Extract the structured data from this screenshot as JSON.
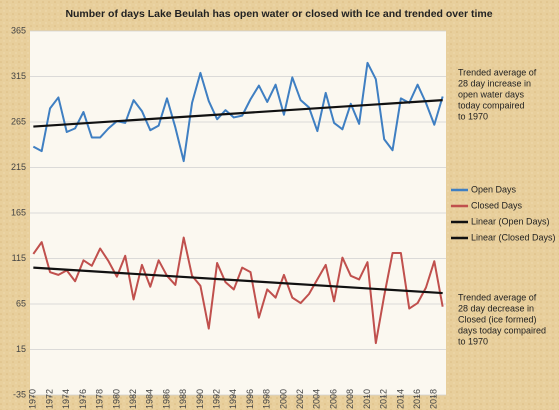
{
  "chart_data": {
    "type": "line",
    "title": "Number of days Lake Beulah has open water or closed with Ice and trended over time",
    "x": [
      1970,
      1971,
      1972,
      1973,
      1974,
      1975,
      1976,
      1977,
      1978,
      1979,
      1980,
      1981,
      1982,
      1983,
      1984,
      1985,
      1986,
      1987,
      1988,
      1989,
      1990,
      1991,
      1992,
      1993,
      1994,
      1995,
      1996,
      1997,
      1998,
      1999,
      2000,
      2001,
      2002,
      2003,
      2004,
      2005,
      2006,
      2007,
      2008,
      2009,
      2010,
      2011,
      2012,
      2013,
      2014,
      2015,
      2016,
      2017,
      2018,
      2019
    ],
    "xlim": [
      1969.6,
      2019.4
    ],
    "xticks": [
      1970,
      1972,
      1974,
      1976,
      1978,
      1980,
      1982,
      1984,
      1986,
      1988,
      1990,
      1992,
      1994,
      1996,
      1998,
      2000,
      2002,
      2004,
      2006,
      2008,
      2010,
      2012,
      2014,
      2016,
      2018
    ],
    "ylim": [
      -35,
      365
    ],
    "yticks": [
      -35,
      15,
      65,
      115,
      165,
      215,
      265,
      315,
      365
    ],
    "grid": true,
    "legend": "right",
    "series": [
      {
        "name": "Open Days",
        "color": "#3f7fc2",
        "values": [
          238,
          233,
          280,
          292,
          254,
          258,
          276,
          248,
          248,
          258,
          266,
          264,
          289,
          277,
          256,
          261,
          291,
          259,
          222,
          286,
          319,
          288,
          268,
          278,
          270,
          272,
          290,
          305,
          287,
          306,
          273,
          314,
          289,
          281,
          255,
          297,
          264,
          257,
          285,
          263,
          330,
          312,
          246,
          234,
          291,
          286,
          306,
          286,
          262,
          293
        ]
      },
      {
        "name": "Closed Days",
        "color": "#c0504d",
        "values": [
          120,
          133,
          100,
          97,
          102,
          90,
          113,
          107,
          126,
          112,
          95,
          118,
          70,
          108,
          84,
          113,
          96,
          86,
          138,
          96,
          85,
          38,
          110,
          89,
          81,
          105,
          100,
          50,
          81,
          72,
          97,
          72,
          66,
          76,
          92,
          108,
          68,
          116,
          96,
          92,
          111,
          22,
          74,
          121,
          121,
          60,
          66,
          83,
          112,
          62
        ]
      },
      {
        "name": "Linear (Open Days)",
        "color": "#111111",
        "x": [
          1970,
          2019
        ],
        "values": [
          260,
          289
        ]
      },
      {
        "name": "Linear (Closed Days)",
        "color": "#111111",
        "x": [
          1970,
          2019
        ],
        "values": [
          105,
          77
        ]
      }
    ],
    "annotations": [
      [
        "Trended average of",
        "28 day increase in",
        "open water  days",
        "today compaired",
        "to 1970"
      ],
      [
        "Trended average of",
        "28 day decrease in",
        "Closed (ice formed)",
        "days today compaired",
        "to 1970"
      ]
    ]
  }
}
